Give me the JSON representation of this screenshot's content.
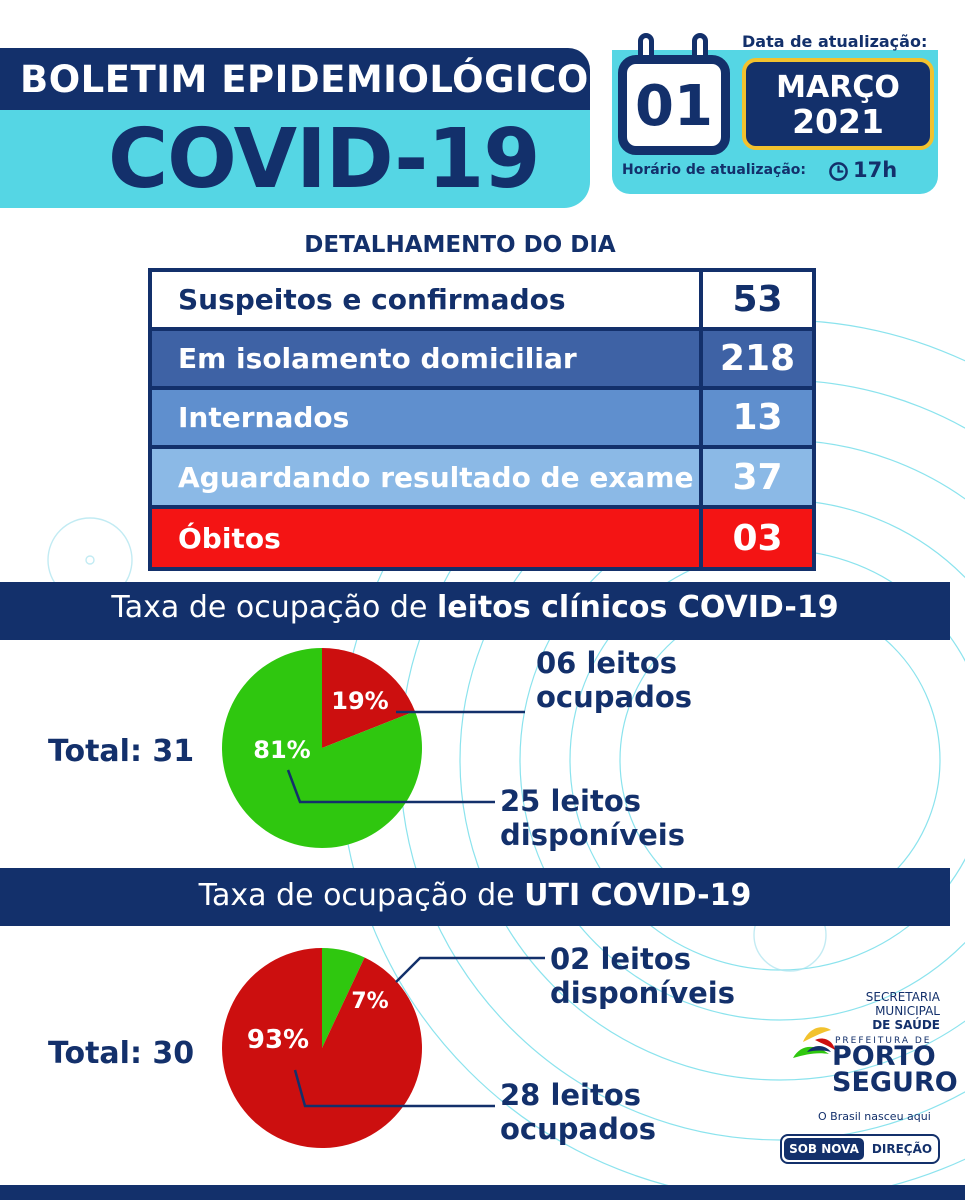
{
  "header": {
    "title": "BOLETIM EPIDEMIOLÓGICO",
    "subtitle": "COVID-19",
    "update_date_label": "Data de atualização:",
    "day": "01",
    "month": "MARÇO",
    "year": "2021",
    "update_time_label": "Horário de atualização:",
    "update_time": "17h",
    "icons": [
      "calendar-icon",
      "clock-icon"
    ]
  },
  "details": {
    "title": "DETALHAMENTO DO DIA",
    "rows": [
      {
        "label": "Suspeitos e confirmados",
        "value": "53",
        "bg": "#ffffff",
        "fg": "#13306b"
      },
      {
        "label": "Em isolamento domiciliar",
        "value": "218",
        "bg": "#3e62a5",
        "fg": "#ffffff"
      },
      {
        "label": "Internados",
        "value": "13",
        "bg": "#5f8fce",
        "fg": "#ffffff"
      },
      {
        "label": "Aguardando resultado de exame",
        "value": "37",
        "bg": "#8bb9e6",
        "fg": "#ffffff"
      },
      {
        "label": "Óbitos",
        "value": "03",
        "bg": "#f41414",
        "fg": "#ffffff"
      }
    ]
  },
  "clinical": {
    "bar_prefix": "Taxa de ocupação de ",
    "bar_bold": "leitos clínicos COVID-19",
    "total": "Total: 31",
    "occupied_pct": "19%",
    "available_pct": "81%",
    "occupied_label": [
      "06 leitos",
      "ocupados"
    ],
    "available_label": [
      "25 leitos",
      "disponíveis"
    ]
  },
  "icu": {
    "bar_prefix": "Taxa de ocupação de ",
    "bar_bold": "UTI COVID-19",
    "total": "Total: 30",
    "available_pct": "7%",
    "occupied_pct": "93%",
    "available_label": [
      "02 leitos",
      "disponíveis"
    ],
    "occupied_label": [
      "28 leitos",
      "ocupados"
    ]
  },
  "chart_data": [
    {
      "type": "pie",
      "slices": [
        {
          "label": "19%",
          "value": 19,
          "color": "#cc0f0f"
        },
        {
          "label": "81%",
          "value": 81,
          "color": "#2fc70f"
        }
      ]
    },
    {
      "type": "pie",
      "slices": [
        {
          "label": "7%",
          "value": 7,
          "color": "#2fc70f"
        },
        {
          "label": "93%",
          "value": 93,
          "color": "#cc0f0f"
        }
      ]
    }
  ],
  "footer": {
    "secretaria": [
      "SECRETARIA",
      "MUNICIPAL"
    ],
    "secretaria_bold": "DE SAÚDE",
    "logo_prefix": "PREFEITURA DE",
    "logo_name": [
      "PORTO",
      "SEGURO"
    ],
    "logo_tagline": "O Brasil nasceu aqui",
    "badge_left": "SOB NOVA",
    "badge_right": "DIREÇÃO"
  },
  "colors": {
    "navy": "#13306b",
    "cyan": "#55d6e4",
    "gold": "#f2c22e",
    "red": "#cc0f0f",
    "green": "#2fc70f"
  }
}
